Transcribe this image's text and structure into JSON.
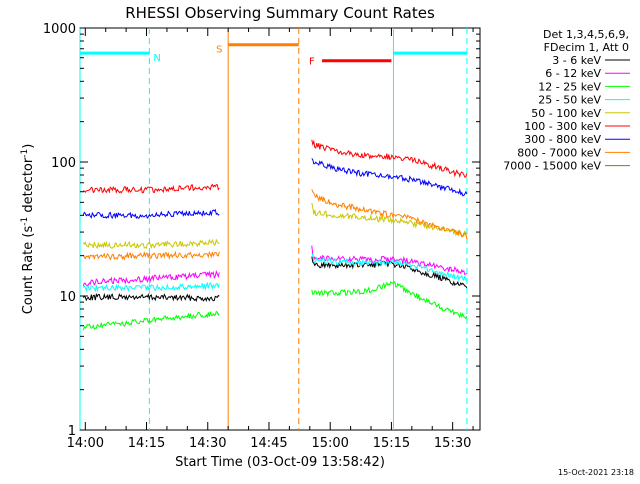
{
  "chart_data": {
    "type": "line",
    "title": "RHESSI Observing Summary Count Rates",
    "xlabel": "Start Time (03-Oct-09 13:58:42)",
    "ylabel_main": "Count Rate (s",
    "ylabel_sup1": "-1",
    "ylabel_mid": " detector",
    "ylabel_sup2": "-1",
    "ylabel_end": ")",
    "yscale": "log",
    "ylim": [
      1,
      1000
    ],
    "xlim_minutes": [
      -1.3,
      96.7
    ],
    "x_ticks": [
      {
        "minute": 0,
        "label": "14:00"
      },
      {
        "minute": 15,
        "label": "14:15"
      },
      {
        "minute": 30,
        "label": "14:30"
      },
      {
        "minute": 45,
        "label": "14:45"
      },
      {
        "minute": 60,
        "label": "15:00"
      },
      {
        "minute": 75,
        "label": "15:15"
      },
      {
        "minute": 90,
        "label": "15:30"
      }
    ],
    "y_ticks": [
      {
        "value": 1,
        "label": "1"
      },
      {
        "value": 10,
        "label": "10"
      },
      {
        "value": 100,
        "label": "100"
      },
      {
        "value": 1000,
        "label": "1000"
      }
    ],
    "legend_header": [
      "Det 1,3,4,5,6,9,",
      "FDecim 1, Att 0"
    ],
    "series": [
      {
        "name": "3 - 6 keV",
        "color": "#000000",
        "points": [
          [
            -0.5,
            9.8
          ],
          [
            15,
            9.8
          ],
          [
            33,
            9.6
          ],
          [
            55.5,
            20
          ],
          [
            56,
            17
          ],
          [
            62,
            17
          ],
          [
            70,
            17
          ],
          [
            75,
            17.5
          ],
          [
            80,
            16
          ],
          [
            86,
            14
          ],
          [
            92,
            12
          ],
          [
            93.5,
            11.5
          ]
        ]
      },
      {
        "name": "6 - 12 keV",
        "color": "#ff00ff",
        "points": [
          [
            -0.5,
            12.5
          ],
          [
            15,
            13.5
          ],
          [
            33,
            14.5
          ],
          [
            55.5,
            23
          ],
          [
            56,
            19.5
          ],
          [
            62,
            19
          ],
          [
            70,
            18.5
          ],
          [
            75,
            19
          ],
          [
            80,
            18
          ],
          [
            86,
            16.5
          ],
          [
            93.5,
            15
          ]
        ]
      },
      {
        "name": "12 - 25 keV",
        "color": "#00ff00",
        "points": [
          [
            -0.5,
            5.8
          ],
          [
            15,
            6.5
          ],
          [
            33,
            7.5
          ],
          [
            55.5,
            11
          ],
          [
            56,
            10.5
          ],
          [
            62,
            10.5
          ],
          [
            70,
            11
          ],
          [
            75,
            12.5
          ],
          [
            80,
            10.5
          ],
          [
            86,
            8.5
          ],
          [
            93.5,
            7
          ]
        ]
      },
      {
        "name": "25 - 50 keV",
        "color": "#00ffff",
        "points": [
          [
            -0.5,
            11.5
          ],
          [
            15,
            11.5
          ],
          [
            33,
            12
          ],
          [
            55.5,
            20
          ],
          [
            56,
            18.5
          ],
          [
            62,
            18
          ],
          [
            70,
            17.5
          ],
          [
            75,
            18
          ],
          [
            80,
            17
          ],
          [
            86,
            15
          ],
          [
            93.5,
            13.5
          ]
        ]
      },
      {
        "name": "50 - 100 keV",
        "color": "#c8c800",
        "points": [
          [
            -0.5,
            24
          ],
          [
            15,
            24
          ],
          [
            33,
            25
          ],
          [
            55.5,
            48
          ],
          [
            56,
            42
          ],
          [
            62,
            40
          ],
          [
            70,
            38
          ],
          [
            75,
            37
          ],
          [
            80,
            35
          ],
          [
            86,
            32
          ],
          [
            93.5,
            29
          ]
        ]
      },
      {
        "name": "100 - 300 keV",
        "color": "#ff0000",
        "points": [
          [
            -0.5,
            62
          ],
          [
            15,
            62
          ],
          [
            25,
            64
          ],
          [
            33,
            65
          ],
          [
            55.5,
            145
          ],
          [
            56,
            135
          ],
          [
            62,
            118
          ],
          [
            70,
            110
          ],
          [
            75,
            110
          ],
          [
            80,
            105
          ],
          [
            86,
            92
          ],
          [
            93.5,
            78
          ]
        ]
      },
      {
        "name": "300 - 800 keV",
        "color": "#0000ff",
        "points": [
          [
            -0.5,
            40
          ],
          [
            15,
            40
          ],
          [
            33,
            42
          ],
          [
            55.5,
            108
          ],
          [
            56,
            100
          ],
          [
            62,
            88
          ],
          [
            70,
            80
          ],
          [
            75,
            78
          ],
          [
            80,
            74
          ],
          [
            86,
            66
          ],
          [
            93.5,
            58
          ]
        ]
      },
      {
        "name": "800 - 7000 keV",
        "color": "#ff8000",
        "points": [
          [
            -0.5,
            19.5
          ],
          [
            15,
            20
          ],
          [
            33,
            20.5
          ],
          [
            55.5,
            62
          ],
          [
            56,
            56
          ],
          [
            62,
            48
          ],
          [
            70,
            43
          ],
          [
            75,
            40
          ],
          [
            80,
            38
          ],
          [
            86,
            33
          ],
          [
            93.5,
            28
          ]
        ]
      },
      {
        "name": "7000 - 15000 keV",
        "color": "#808000",
        "points": []
      }
    ],
    "state_bars": [
      {
        "label": "N",
        "color": "#00ffff",
        "segments": [
          [
            -1.3,
            15.7
          ],
          [
            75.5,
            93.5
          ]
        ],
        "value": 650
      },
      {
        "label": "S",
        "color": "#ff8000",
        "segments": [
          [
            35,
            52.3
          ]
        ],
        "value": 750
      },
      {
        "label": "F",
        "color": "#ff0000",
        "segments": [
          [
            58,
            75
          ]
        ],
        "value": 570
      }
    ],
    "markers": [
      {
        "minute": -1.3,
        "color": "#00ffff",
        "style": "solid"
      },
      {
        "minute": 15.7,
        "color": "#00ffff",
        "style": "dashed"
      },
      {
        "minute": 35,
        "color": "#ff8000",
        "style": "solid"
      },
      {
        "minute": 52.3,
        "color": "#ff8000",
        "style": "dashed"
      },
      {
        "minute": 75.5,
        "color": "#00ffff",
        "style": "solid"
      },
      {
        "minute": 93.5,
        "color": "#00ffff",
        "style": "dashed"
      }
    ],
    "gaps": [
      [
        33.3,
        55.3
      ]
    ]
  },
  "footer_date": "15-Oct-2021 23:18"
}
